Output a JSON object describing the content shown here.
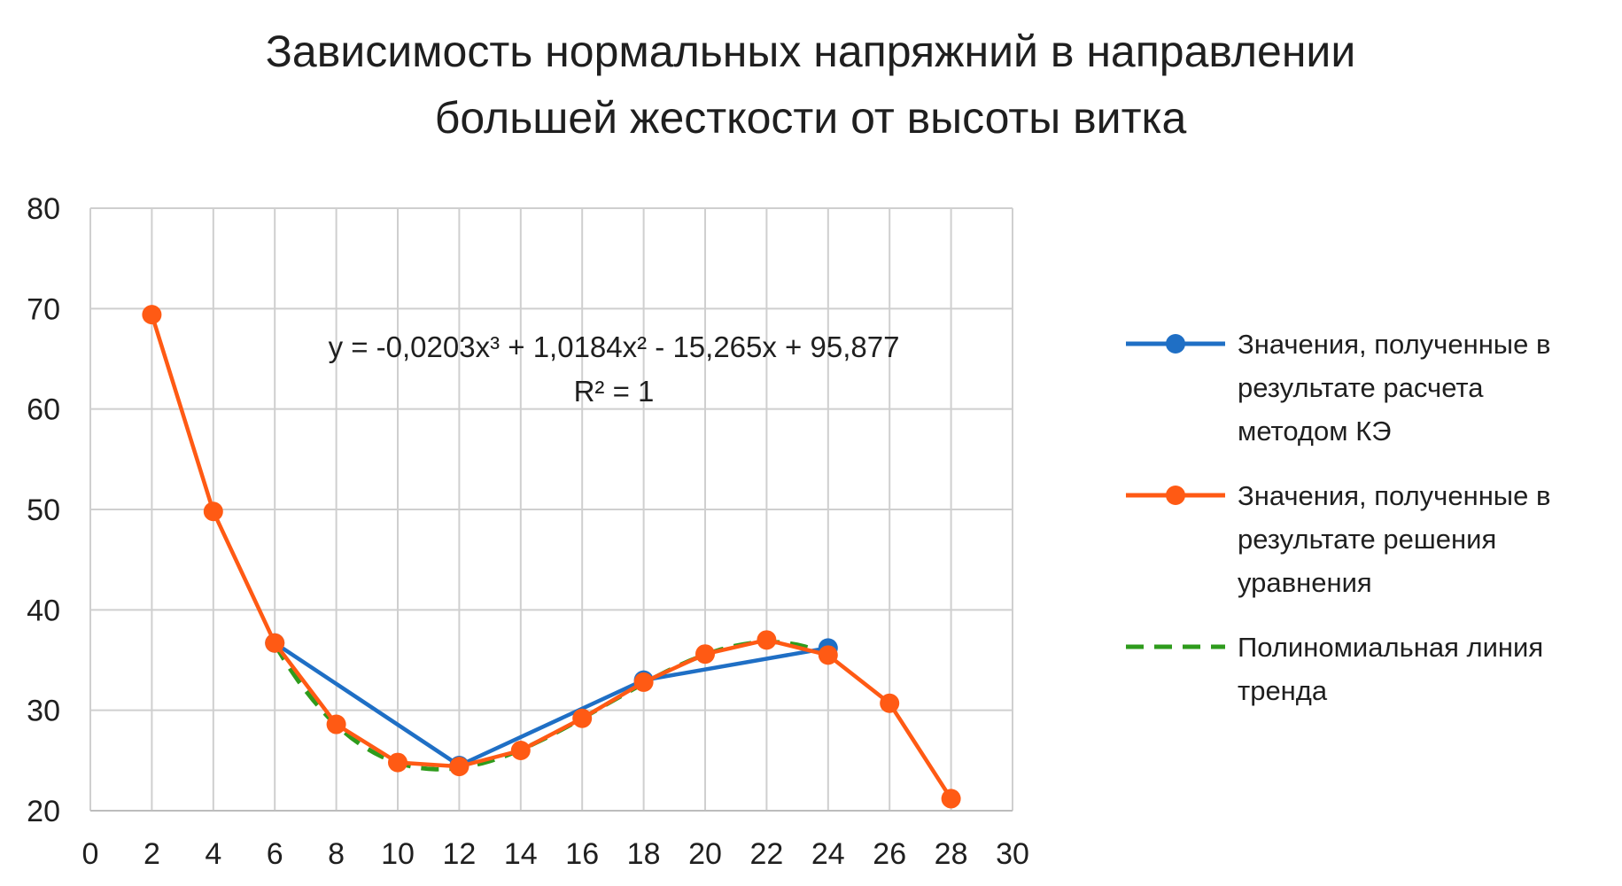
{
  "chart_data": {
    "type": "line",
    "title_lines": [
      "Зависимость нормальных напряжний в направлении",
      "большей жесткости от высоты витка"
    ],
    "xlabel": "",
    "ylabel": "",
    "xlim": [
      0,
      30
    ],
    "ylim": [
      20,
      80
    ],
    "x_ticks": [
      0,
      2,
      4,
      6,
      8,
      10,
      12,
      14,
      16,
      18,
      20,
      22,
      24,
      26,
      28,
      30
    ],
    "y_ticks": [
      20,
      30,
      40,
      50,
      60,
      70,
      80
    ],
    "grid": true,
    "legend_position": "right",
    "series": [
      {
        "name_lines": [
          "Значения, полученные в",
          "результате расчета",
          "методом КЭ"
        ],
        "color": "#1f6fc5",
        "style": "solid-markers",
        "x": [
          6,
          12,
          18,
          24
        ],
        "y": [
          36.7,
          24.5,
          33.0,
          36.2
        ]
      },
      {
        "name_lines": [
          "Значения, полученные в",
          "результате решения",
          "уравнения"
        ],
        "color": "#ff5a14",
        "style": "solid-markers",
        "x": [
          2,
          4,
          6,
          8,
          10,
          12,
          14,
          16,
          18,
          20,
          22,
          24,
          26,
          28
        ],
        "y": [
          69.4,
          49.8,
          36.7,
          28.6,
          24.8,
          24.4,
          26.0,
          29.2,
          32.8,
          35.6,
          37.0,
          35.5,
          30.7,
          21.2
        ]
      },
      {
        "name_lines": [
          "Полиномиальная линия",
          "тренда"
        ],
        "color": "#2e9b1c",
        "style": "dashed",
        "trend_of": "Значения, полученные в результате расчета методом КЭ",
        "x_range": [
          6,
          24
        ],
        "coefficients": {
          "a3": -0.0203,
          "a2": 1.0184,
          "a1": -15.265,
          "a0": 95.877
        }
      }
    ],
    "annotations": [
      "y = -0,0203x³ + 1,0184x² - 15,265x + 95,877",
      "R² = 1"
    ]
  }
}
